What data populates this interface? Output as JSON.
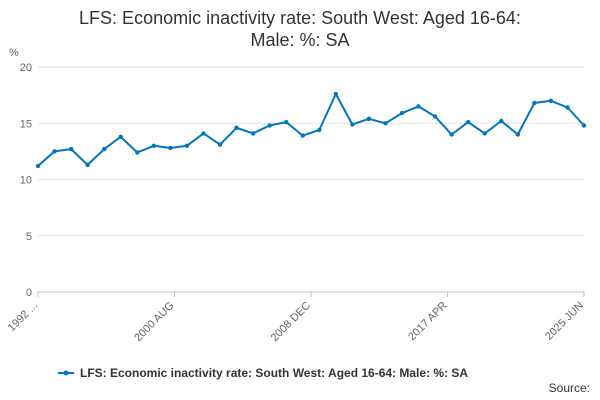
{
  "chart_data": {
    "type": "line",
    "title": "LFS: Economic inactivity rate: South West: Aged 16-64: Male: %: SA",
    "ylabel": "%",
    "ylim": [
      0,
      20
    ],
    "y_ticks": [
      "0",
      "5",
      "10",
      "15",
      "20"
    ],
    "x_ticks": [
      "1992 ...",
      "2000 AUG",
      "2008 DEC",
      "2017 APR",
      "2025 JUN"
    ],
    "grid": true,
    "legend_position": "bottom",
    "source_label": "Source:",
    "series": [
      {
        "name": "LFS: Economic inactivity rate: South West: Aged 16-64: Male: %: SA",
        "color": "#0077bb",
        "x": [
          "1992",
          "1993",
          "1994",
          "1995",
          "1996",
          "1997",
          "1998",
          "1999",
          "2000",
          "2001",
          "2002",
          "2003",
          "2004",
          "2005",
          "2006",
          "2007",
          "2008",
          "2009",
          "2010",
          "2011",
          "2012",
          "2013",
          "2014",
          "2015",
          "2016",
          "2017",
          "2018",
          "2019",
          "2020",
          "2021",
          "2022",
          "2023",
          "2024",
          "2025"
        ],
        "values": [
          11.2,
          12.5,
          12.7,
          11.3,
          12.7,
          13.8,
          12.4,
          13.0,
          12.8,
          13.0,
          14.1,
          13.1,
          14.6,
          14.1,
          14.8,
          15.1,
          13.9,
          14.4,
          17.6,
          14.9,
          15.4,
          15.0,
          15.9,
          16.5,
          15.6,
          14.0,
          15.1,
          14.1,
          15.2,
          14.0,
          16.8,
          17.0,
          16.4,
          14.8
        ]
      }
    ]
  }
}
